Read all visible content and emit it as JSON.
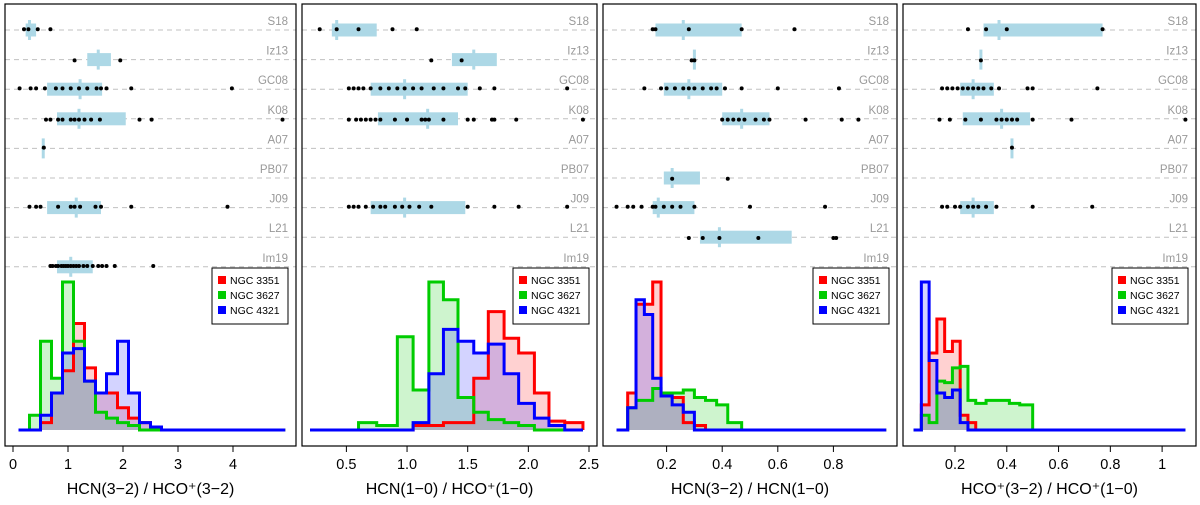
{
  "survey_labels": [
    "S18",
    "Iz13",
    "GC08",
    "K08",
    "A07",
    "PB07",
    "J09",
    "L21",
    "Im19"
  ],
  "legend": [
    {
      "name": "NGC 3351",
      "color": "#ff0000"
    },
    {
      "name": "NGC 3627",
      "color": "#00cc00"
    },
    {
      "name": "NGC 4321",
      "color": "#0000ff"
    }
  ],
  "colors": {
    "box": "#add8e6",
    "grid": "#c0c0c0",
    "point": "#000000"
  },
  "chart_data": [
    {
      "type": "histogram",
      "xlabel": "HCN(3−2) / HCO⁺(3−2)",
      "xlim": [
        0,
        5
      ],
      "ticks": [
        0,
        1,
        2,
        3,
        4
      ],
      "tick_labels": [
        "0",
        "1",
        "2",
        "3",
        "4"
      ],
      "surveys": [
        {
          "label": "S18",
          "box": [
            0.23,
            0.42
          ],
          "median": 0.3,
          "points": [
            0.2,
            0.28,
            0.45,
            0.68
          ]
        },
        {
          "label": "Iz13",
          "box": [
            1.35,
            1.78
          ],
          "median": 1.55,
          "points": [
            1.12,
            1.95
          ]
        },
        {
          "label": "GC08",
          "box": [
            0.62,
            1.62
          ],
          "median": 1.22,
          "points": [
            0.12,
            0.32,
            0.42,
            0.58,
            0.78,
            0.9,
            1.05,
            1.2,
            1.35,
            1.52,
            1.6,
            1.7,
            2.15,
            3.98
          ]
        },
        {
          "label": "K08",
          "box": [
            0.8,
            2.05
          ],
          "median": 1.2,
          "points": [
            0.6,
            0.68,
            0.82,
            0.9,
            1.05,
            1.12,
            1.2,
            1.3,
            1.42,
            1.58,
            2.3,
            2.52,
            4.9
          ]
        },
        {
          "label": "A07",
          "box": null,
          "median": 0.55,
          "points": [
            0.56
          ]
        },
        {
          "label": "PB07",
          "box": null,
          "median": null,
          "points": []
        },
        {
          "label": "J09",
          "box": [
            0.62,
            1.6
          ],
          "median": 1.15,
          "points": [
            0.3,
            0.42,
            0.5,
            0.82,
            1.05,
            1.12,
            1.22,
            1.5,
            1.6,
            2.15,
            3.9
          ]
        },
        {
          "label": "L21",
          "box": null,
          "median": null,
          "points": []
        },
        {
          "label": "Im19",
          "box": [
            0.8,
            1.45
          ],
          "median": 1.05,
          "points": [
            0.68,
            0.72,
            0.78,
            0.82,
            0.88,
            0.92,
            0.96,
            1.0,
            1.05,
            1.1,
            1.15,
            1.2,
            1.28,
            1.35,
            1.45,
            1.55,
            1.62,
            1.7,
            1.85,
            2.55
          ]
        }
      ],
      "hist_edges": [
        0.1,
        0.3,
        0.5,
        0.7,
        0.9,
        1.1,
        1.3,
        1.5,
        1.7,
        1.9,
        2.1,
        2.3,
        2.5,
        2.7,
        4.95
      ],
      "series": [
        {
          "name": "NGC 3351",
          "values": [
            0,
            0,
            0.05,
            0.25,
            0.4,
            0.72,
            0.42,
            0.25,
            0.25,
            0.15,
            0.08,
            0.05,
            0,
            0
          ]
        },
        {
          "name": "NGC 3627",
          "values": [
            0,
            0.1,
            0.6,
            0.35,
            1.0,
            0.6,
            0.33,
            0.12,
            0.08,
            0.05,
            0.03,
            0,
            0,
            0
          ]
        },
        {
          "name": "NGC 4321",
          "values": [
            0,
            0,
            0.1,
            0.25,
            0.52,
            0.55,
            0.33,
            0.25,
            0.38,
            0.6,
            0.25,
            0.05,
            0.02,
            0
          ]
        }
      ]
    },
    {
      "type": "histogram",
      "xlabel": "HCN(1−0) / HCO⁺(1−0)",
      "xlim": [
        0.2,
        2.5
      ],
      "ticks": [
        0.5,
        1.0,
        1.5,
        2.0,
        2.5
      ],
      "tick_labels": [
        "0.5",
        "1.0",
        "1.5",
        "2.0",
        "2.5"
      ],
      "surveys": [
        {
          "label": "S18",
          "box": [
            0.38,
            0.75
          ],
          "median": 0.42,
          "points": [
            0.28,
            0.42,
            0.6,
            0.88,
            1.08
          ]
        },
        {
          "label": "Iz13",
          "box": [
            1.37,
            1.74
          ],
          "median": 1.55,
          "points": [
            1.2,
            1.45
          ]
        },
        {
          "label": "GC08",
          "box": [
            0.7,
            1.5
          ],
          "median": 0.98,
          "points": [
            0.52,
            0.56,
            0.6,
            0.64,
            0.7,
            0.78,
            0.85,
            0.92,
            0.98,
            1.05,
            1.12,
            1.22,
            1.3,
            1.42,
            1.48,
            1.6,
            1.72,
            2.32
          ]
        },
        {
          "label": "K08",
          "box": [
            0.76,
            1.42
          ],
          "median": 1.17,
          "points": [
            0.52,
            0.58,
            0.62,
            0.66,
            0.7,
            0.74,
            0.78,
            0.9,
            1.0,
            1.12,
            1.15,
            1.18,
            1.3,
            1.5,
            1.55,
            1.7,
            1.72,
            1.9,
            2.45
          ]
        },
        {
          "label": "A07",
          "box": null,
          "median": null,
          "points": []
        },
        {
          "label": "PB07",
          "box": null,
          "median": null,
          "points": []
        },
        {
          "label": "J09",
          "box": [
            0.7,
            1.48
          ],
          "median": 0.98,
          "points": [
            0.52,
            0.56,
            0.6,
            0.66,
            0.72,
            0.78,
            0.82,
            0.9,
            0.96,
            1.02,
            1.1,
            1.2,
            1.5,
            1.72,
            1.92,
            2.32
          ]
        },
        {
          "label": "L21",
          "box": null,
          "median": null,
          "points": []
        },
        {
          "label": "Im19",
          "box": null,
          "median": null,
          "points": []
        }
      ],
      "hist_edges": [
        0.2,
        0.6,
        0.75,
        0.92,
        1.05,
        1.18,
        1.3,
        1.42,
        1.55,
        1.67,
        1.8,
        1.92,
        2.05,
        2.17,
        2.3,
        2.45
      ],
      "series": [
        {
          "name": "NGC 3351",
          "values": [
            0,
            0,
            0,
            0,
            0.03,
            0.03,
            0.05,
            0.05,
            0.35,
            0.8,
            0.62,
            0.52,
            0.25,
            0.06,
            0.05
          ]
        },
        {
          "name": "NGC 3627",
          "values": [
            0,
            0.05,
            0.03,
            0.63,
            0.27,
            1.0,
            0.88,
            0.22,
            0.12,
            0.07,
            0.05,
            0.03,
            0,
            0,
            0
          ]
        },
        {
          "name": "NGC 4321",
          "values": [
            0,
            0,
            0,
            0,
            0.05,
            0.38,
            0.68,
            0.6,
            0.52,
            0.58,
            0.38,
            0.18,
            0.08,
            0.03,
            0
          ]
        }
      ]
    },
    {
      "type": "histogram",
      "xlabel": "HCN(3−2) / HCN(1−0)",
      "xlim": [
        0,
        1.0
      ],
      "ticks": [
        0.2,
        0.4,
        0.6,
        0.8
      ],
      "tick_labels": [
        "0.2",
        "0.4",
        "0.6",
        "0.8"
      ],
      "surveys": [
        {
          "label": "S18",
          "box": [
            0.16,
            0.47
          ],
          "median": 0.26,
          "points": [
            0.15,
            0.16,
            0.28,
            0.47,
            0.66
          ]
        },
        {
          "label": "Iz13",
          "box": null,
          "median": 0.3,
          "points": [
            0.29,
            0.3
          ]
        },
        {
          "label": "GC08",
          "box": [
            0.19,
            0.4
          ],
          "median": 0.28,
          "points": [
            0.12,
            0.18,
            0.2,
            0.23,
            0.26,
            0.28,
            0.3,
            0.33,
            0.36,
            0.38,
            0.41,
            0.47,
            0.6,
            0.82
          ]
        },
        {
          "label": "K08",
          "box": [
            0.4,
            0.57
          ],
          "median": 0.47,
          "points": [
            0.4,
            0.42,
            0.44,
            0.46,
            0.48,
            0.52,
            0.55,
            0.57,
            0.7,
            0.83,
            0.89
          ]
        },
        {
          "label": "A07",
          "box": null,
          "median": null,
          "points": []
        },
        {
          "label": "PB07",
          "box": [
            0.19,
            0.32
          ],
          "median": 0.22,
          "points": [
            0.22,
            0.42
          ]
        },
        {
          "label": "J09",
          "box": [
            0.15,
            0.3
          ],
          "median": 0.17,
          "points": [
            0.02,
            0.06,
            0.08,
            0.11,
            0.15,
            0.16,
            0.19,
            0.22,
            0.25,
            0.3,
            0.5,
            0.77
          ]
        },
        {
          "label": "L21",
          "box": [
            0.32,
            0.65
          ],
          "median": 0.39,
          "points": [
            0.28,
            0.33,
            0.39,
            0.53,
            0.8,
            0.81
          ]
        },
        {
          "label": "Im19",
          "box": null,
          "median": null,
          "points": []
        }
      ],
      "hist_edges": [
        0.02,
        0.06,
        0.09,
        0.12,
        0.15,
        0.18,
        0.22,
        0.26,
        0.3,
        0.34,
        0.38,
        0.42,
        0.47,
        0.99
      ],
      "series": [
        {
          "name": "NGC 3351",
          "values": [
            0,
            0.25,
            0.85,
            0.85,
            1.0,
            0.25,
            0.22,
            0.05,
            0.03,
            0,
            0,
            0,
            0
          ]
        },
        {
          "name": "NGC 3627",
          "values": [
            0,
            0.15,
            0.2,
            0.2,
            0.28,
            0.25,
            0.25,
            0.27,
            0.22,
            0.2,
            0.17,
            0.05,
            0
          ]
        },
        {
          "name": "NGC 4321",
          "values": [
            0,
            0.15,
            0.88,
            0.78,
            0.35,
            0.23,
            0.17,
            0.12,
            0,
            0,
            0,
            0,
            0
          ]
        }
      ]
    },
    {
      "type": "histogram",
      "xlabel": "HCO⁺(3−2) / HCO⁺(1−0)",
      "xlim": [
        0.03,
        1.1
      ],
      "ticks": [
        0.2,
        0.4,
        0.6,
        0.8,
        1.0
      ],
      "tick_labels": [
        "0.2",
        "0.4",
        "0.6",
        "0.8",
        "1"
      ],
      "surveys": [
        {
          "label": "S18",
          "box": [
            0.31,
            0.77
          ],
          "median": 0.37,
          "points": [
            0.25,
            0.32,
            0.4,
            0.77
          ]
        },
        {
          "label": "Iz13",
          "box": null,
          "median": 0.3,
          "points": [
            0.3
          ]
        },
        {
          "label": "GC08",
          "box": [
            0.22,
            0.35
          ],
          "median": 0.27,
          "points": [
            0.15,
            0.17,
            0.19,
            0.21,
            0.23,
            0.25,
            0.27,
            0.29,
            0.31,
            0.34,
            0.37,
            0.48,
            0.5,
            0.75
          ]
        },
        {
          "label": "K08",
          "box": [
            0.23,
            0.49
          ],
          "median": 0.38,
          "points": [
            0.14,
            0.18,
            0.24,
            0.3,
            0.36,
            0.38,
            0.4,
            0.42,
            0.44,
            0.5,
            0.65,
            1.09
          ]
        },
        {
          "label": "A07",
          "box": null,
          "median": 0.42,
          "points": [
            0.42
          ]
        },
        {
          "label": "PB07",
          "box": null,
          "median": null,
          "points": []
        },
        {
          "label": "J09",
          "box": [
            0.22,
            0.35
          ],
          "median": 0.27,
          "points": [
            0.15,
            0.17,
            0.2,
            0.22,
            0.25,
            0.27,
            0.29,
            0.32,
            0.36,
            0.5,
            0.73
          ]
        },
        {
          "label": "L21",
          "box": null,
          "median": null,
          "points": []
        },
        {
          "label": "Im19",
          "box": null,
          "median": null,
          "points": []
        }
      ],
      "hist_edges": [
        0.04,
        0.07,
        0.1,
        0.13,
        0.16,
        0.19,
        0.22,
        0.25,
        0.28,
        0.32,
        0.36,
        0.41,
        0.45,
        0.5,
        1.09
      ],
      "series": [
        {
          "name": "NGC 3351",
          "values": [
            0,
            0.17,
            0.52,
            0.75,
            0.53,
            0.6,
            0.1,
            0.05,
            0,
            0,
            0,
            0,
            0,
            0
          ]
        },
        {
          "name": "NGC 3627",
          "values": [
            0,
            0.1,
            0.05,
            0.33,
            0.32,
            0.42,
            0.43,
            0.2,
            0.18,
            0.2,
            0.2,
            0.18,
            0.17,
            0
          ]
        },
        {
          "name": "NGC 4321",
          "values": [
            0,
            1.0,
            0.47,
            0.25,
            0.22,
            0.27,
            0.05,
            0,
            0,
            0,
            0,
            0,
            0,
            0
          ]
        }
      ]
    }
  ]
}
